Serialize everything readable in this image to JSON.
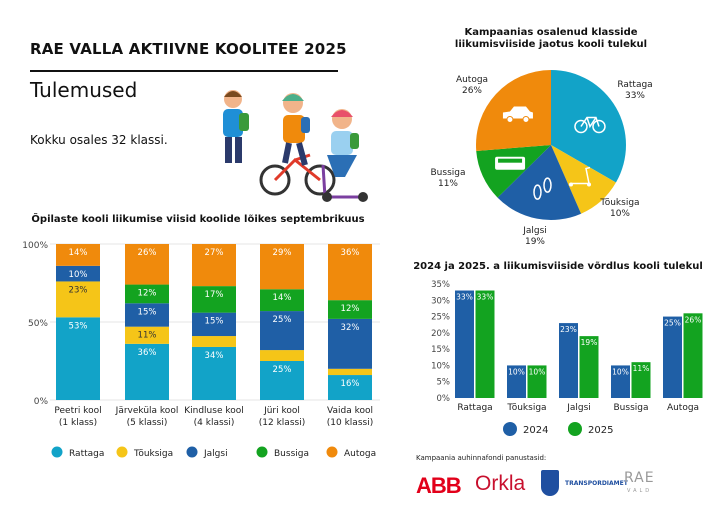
{
  "header": {
    "title": "RAE VALLA AKTIIVNE KOOLITEE 2025",
    "subtitle": "Tulemused",
    "total": "Kokku osales 32 klassi."
  },
  "colors": {
    "Rattaga": "#12a3c8",
    "Tõuksiga": "#f5c518",
    "Jalgsi": "#1f5fa6",
    "Bussiga": "#13a320",
    "Autoga": "#f08a0c"
  },
  "chart_data": [
    {
      "type": "bar",
      "stacked": true,
      "title": "Õpilaste kooli liikumise viisid koolide lõikes septembrikuus",
      "categories": [
        [
          "Peetri kool",
          "(1 klass)"
        ],
        [
          "Järveküla kool",
          "(5 klassi)"
        ],
        [
          "Kindluse kool",
          "(4 klassi)"
        ],
        [
          "Jüri kool",
          "(12 klassi)"
        ],
        [
          "Vaida kool",
          "(10 klassi)"
        ]
      ],
      "yticks": [
        "0%",
        "50%",
        "100%"
      ],
      "ylim": [
        0,
        100
      ],
      "legend": "bottom",
      "series": [
        {
          "name": "Rattaga",
          "values": [
            53,
            36,
            34,
            25,
            16
          ],
          "labels": [
            "53%",
            "36%",
            "34%",
            "25%",
            "16%"
          ]
        },
        {
          "name": "Tõuksiga",
          "values": [
            23,
            11,
            7,
            7,
            4
          ],
          "labels": [
            "23%",
            "11%",
            "",
            "",
            ""
          ]
        },
        {
          "name": "Jalgsi",
          "values": [
            10,
            15,
            15,
            25,
            32
          ],
          "labels": [
            "10%",
            "15%",
            "15%",
            "25%",
            "32%"
          ]
        },
        {
          "name": "Bussiga",
          "values": [
            0,
            12,
            17,
            14,
            12
          ],
          "labels": [
            "",
            "12%",
            "17%",
            "14%",
            "12%"
          ]
        },
        {
          "name": "Autoga",
          "values": [
            14,
            26,
            27,
            29,
            36
          ],
          "labels": [
            "14%",
            "26%",
            "27%",
            "29%",
            "36%"
          ]
        }
      ]
    },
    {
      "type": "pie",
      "title": [
        "Kampaanias osalenud klasside",
        "liikumisviiside jaotus kooli tulekul"
      ],
      "slices": [
        {
          "name": "Rattaga",
          "value": 33,
          "label": "33%",
          "icon": "bicycle-icon"
        },
        {
          "name": "Tõuksiga",
          "value": 10,
          "label": "10%",
          "icon": "scooter-icon"
        },
        {
          "name": "Jalgsi",
          "value": 19,
          "label": "19%",
          "icon": "footprints-icon"
        },
        {
          "name": "Bussiga",
          "value": 11,
          "label": "11%",
          "icon": "bus-icon"
        },
        {
          "name": "Autoga",
          "value": 26,
          "label": "26%",
          "icon": "car-icon"
        }
      ]
    },
    {
      "type": "bar",
      "title": "2024 ja 2025. a liikumisviiside võrdlus kooli tulekul",
      "categories": [
        "Rattaga",
        "Tõuksiga",
        "Jalgsi",
        "Bussiga",
        "Autoga"
      ],
      "yticks": [
        "0%",
        "5%",
        "10%",
        "15%",
        "20%",
        "25%",
        "30%",
        "35%"
      ],
      "ylim": [
        0,
        35
      ],
      "legend": "bottom",
      "series": [
        {
          "name": "2024",
          "color": "#1f5fa6",
          "values": [
            33,
            10,
            23,
            10,
            25
          ],
          "labels": [
            "33%",
            "10%",
            "23%",
            "10%",
            "25%"
          ]
        },
        {
          "name": "2025",
          "color": "#13a320",
          "values": [
            33,
            10,
            19,
            11,
            26
          ],
          "labels": [
            "33%",
            "10%",
            "19%",
            "11%",
            "26%"
          ]
        }
      ]
    }
  ],
  "sponsors": {
    "label": "Kampaania auhinnafondi panustasid:",
    "logos": [
      "ABB",
      "Orkla",
      "TRANSPORDIAMET",
      "RAE",
      "VALD"
    ]
  }
}
